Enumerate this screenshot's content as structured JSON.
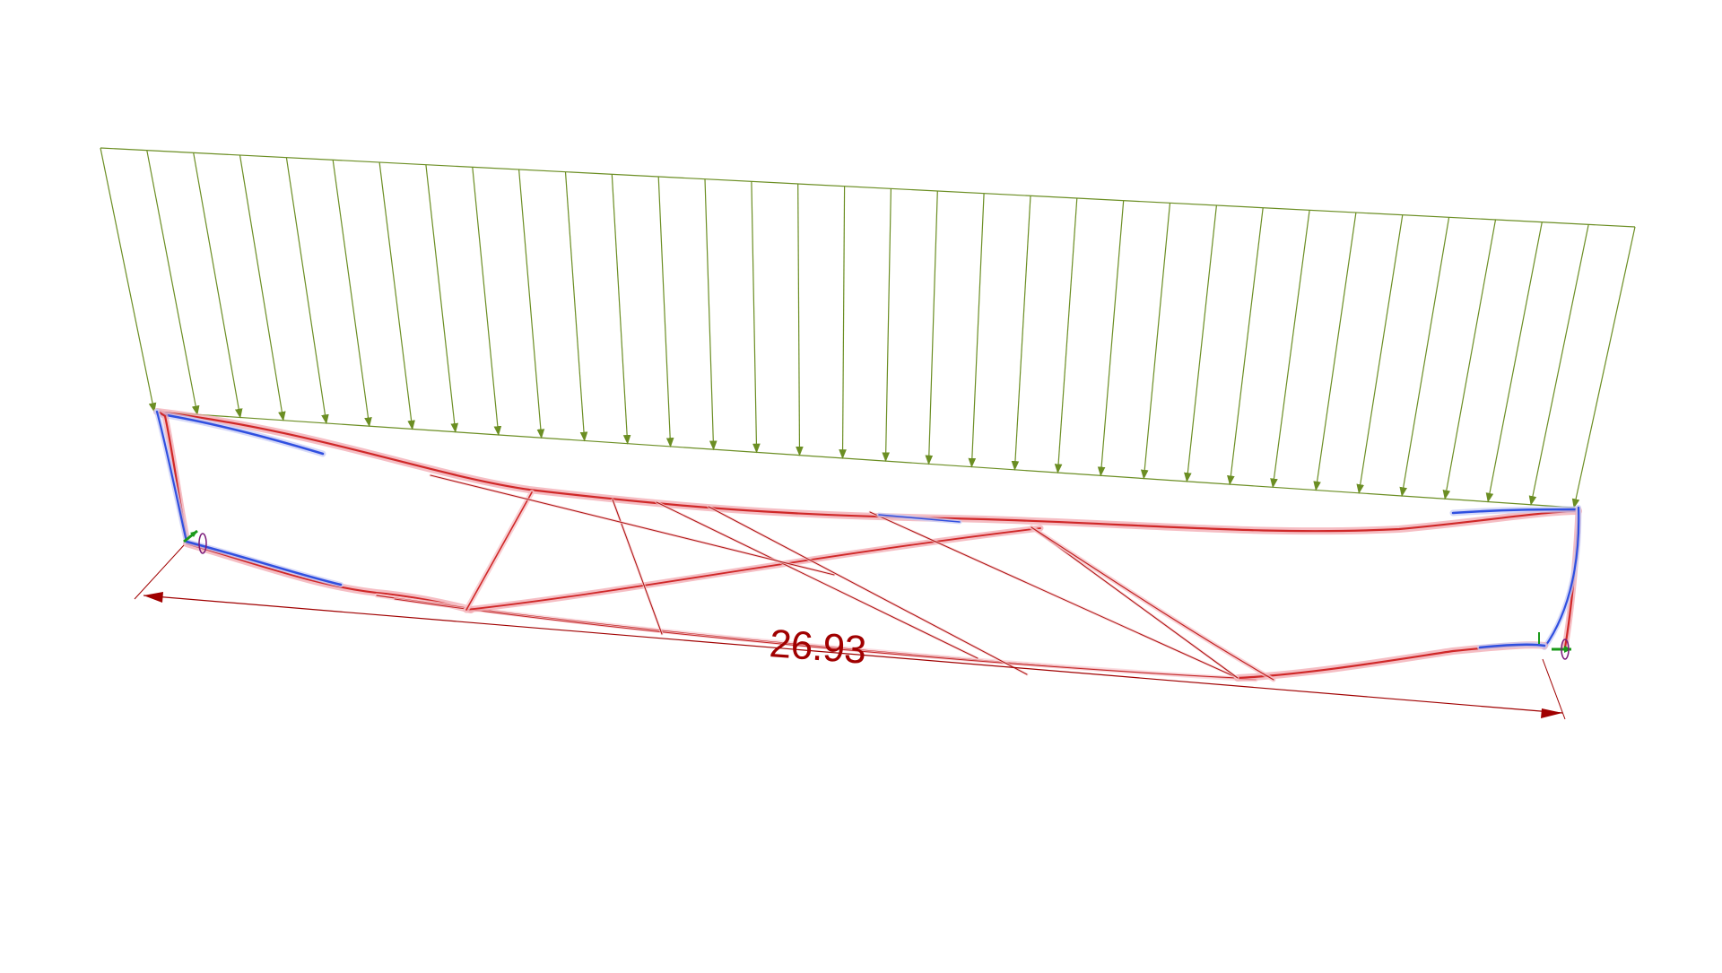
{
  "dimension": {
    "value": "26.93"
  },
  "colors": {
    "background": "#ffffff",
    "load_arrows": "#6b8e23",
    "dimension": "#a00000",
    "stress_tension": "#e03030",
    "stress_compression": "#3050e0",
    "support_green": "#1a9a1a",
    "support_purple": "#7a1a7a"
  },
  "icons": [
    "load-arrow-icon",
    "support-left-icon",
    "support-right-icon",
    "dimension-arrowhead-icon"
  ]
}
